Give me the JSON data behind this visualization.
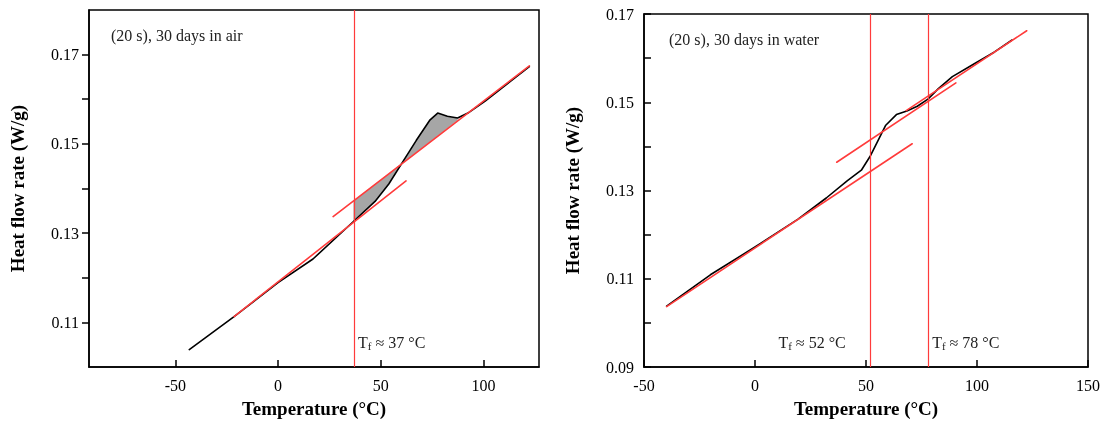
{
  "chart_data": [
    {
      "type": "line",
      "title": "(20 s), 30 days in air",
      "xlabel": "Temperature (°C)",
      "ylabel": "Heat flow rate (W/g)",
      "xlim": [
        -92,
        127
      ],
      "ylim": [
        0.1,
        0.18
      ],
      "xticks": [
        -50,
        0,
        50,
        100
      ],
      "yticks": [
        0.11,
        {
          "value": 0.12,
          "label": null
        },
        0.13,
        {
          "value": 0.14,
          "label": null
        },
        0.15,
        {
          "value": 0.16,
          "label": null
        },
        0.17
      ],
      "grid": false,
      "marker": "none",
      "line_style": "solid",
      "series": [
        {
          "color": "#000000",
          "x": [
            -43.2,
            -21.4,
            0,
            17,
            36.7,
            47.2,
            53.9,
            60.6,
            67.3,
            74,
            77.7,
            82.4,
            87.4,
            92.4,
            100.8,
            122.3
          ],
          "values": [
            0.1039,
            0.1113,
            0.1189,
            0.1242,
            0.1326,
            0.1371,
            0.141,
            0.1459,
            0.1508,
            0.1554,
            0.1569,
            0.1562,
            0.1558,
            0.1569,
            0.1596,
            0.1673
          ],
          "lower": [
            null,
            null,
            null,
            null,
            0.1326,
            0.1371,
            0.141,
            0.1457,
            0.1481,
            0.1505,
            0.1518,
            0.1535,
            0.1553,
            null,
            null,
            null
          ],
          "upper": [
            null,
            null,
            null,
            null,
            0.1372,
            0.141,
            0.1433,
            0.1459,
            0.1508,
            0.1554,
            0.1569,
            0.1562,
            0.1558,
            null,
            null,
            null
          ]
        },
        {
          "color": "#ff3b3b",
          "x": [
            -21.4,
            62.3
          ],
          "values": [
            0.1113,
            0.1417
          ]
        },
        {
          "color": "#ff3b3b",
          "x": [
            26.8,
            122.3
          ],
          "values": [
            0.1337,
            0.1675
          ]
        }
      ],
      "ref_lines": [
        {
          "axis": "x",
          "value": 37,
          "color": "#ff3b3b",
          "label": "T$_{f}$ ≈ 37 °C"
        }
      ]
    },
    {
      "type": "line",
      "title": "(20 s), 30 days in water",
      "xlabel": "Temperature (°C)",
      "ylabel": "Heat flow rate (W/g)",
      "xlim": [
        -50,
        150
      ],
      "ylim": [
        0.09,
        0.17
      ],
      "xticks": [
        -50,
        0,
        50,
        100,
        150
      ],
      "yticks": [
        0.09,
        {
          "value": 0.1,
          "label": null
        },
        0.11,
        {
          "value": 0.12,
          "label": null
        },
        0.13,
        {
          "value": 0.14,
          "label": null
        },
        0.15,
        {
          "value": 0.16,
          "label": null
        },
        0.17
      ],
      "grid": false,
      "marker": "none",
      "line_style": "solid",
      "series": [
        {
          "color": "#000000",
          "x": [
            -39.8,
            -20.1,
            0,
            19.4,
            32.1,
            41.5,
            47.9,
            51.8,
            55.8,
            58.9,
            63.7,
            68.4,
            73.1,
            77.9,
            82.6,
            88.9,
            98.4,
            107.9,
            115.8
          ],
          "values": [
            0.1038,
            0.1109,
            0.1172,
            0.1235,
            0.1283,
            0.1322,
            0.1346,
            0.1377,
            0.1417,
            0.1448,
            0.1472,
            0.148,
            0.1491,
            0.1507,
            0.1531,
            0.1558,
            0.1586,
            0.1614,
            0.1641
          ]
        },
        {
          "color": "#ff3b3b",
          "x": [
            -39.8,
            70.8
          ],
          "values": [
            0.1037,
            0.1406
          ]
        },
        {
          "color": "#ff3b3b",
          "x": [
            36.8,
            90.5
          ],
          "values": [
            0.1364,
            0.1544
          ]
        },
        {
          "color": "#ff3b3b",
          "x": [
            68.1,
            122.4
          ],
          "values": [
            0.1481,
            0.1662
          ]
        }
      ],
      "ref_lines": [
        {
          "axis": "x",
          "value": 52,
          "color": "#ff3b3b",
          "label": "T$_{f}$ ≈ 52 °C"
        },
        {
          "axis": "x",
          "value": 78,
          "color": "#ff3b3b",
          "label": "T$_{f}$ ≈ 78 °C"
        }
      ]
    }
  ]
}
